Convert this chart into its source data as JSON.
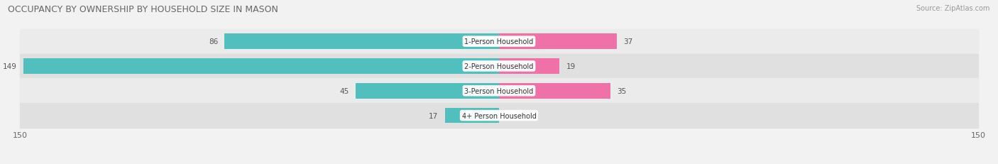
{
  "title": "OCCUPANCY BY OWNERSHIP BY HOUSEHOLD SIZE IN MASON",
  "source": "Source: ZipAtlas.com",
  "categories": [
    "1-Person Household",
    "2-Person Household",
    "3-Person Household",
    "4+ Person Household"
  ],
  "owner_values": [
    86,
    149,
    45,
    17
  ],
  "renter_values": [
    37,
    19,
    35,
    0
  ],
  "owner_color": "#52BFBF",
  "renter_color": "#F070A8",
  "axis_max": 150,
  "background_color": "#f2f2f2",
  "row_colors": [
    "#ebebeb",
    "#e0e0e0"
  ],
  "title_fontsize": 9,
  "label_fontsize": 7.5,
  "tick_fontsize": 8,
  "source_fontsize": 7
}
